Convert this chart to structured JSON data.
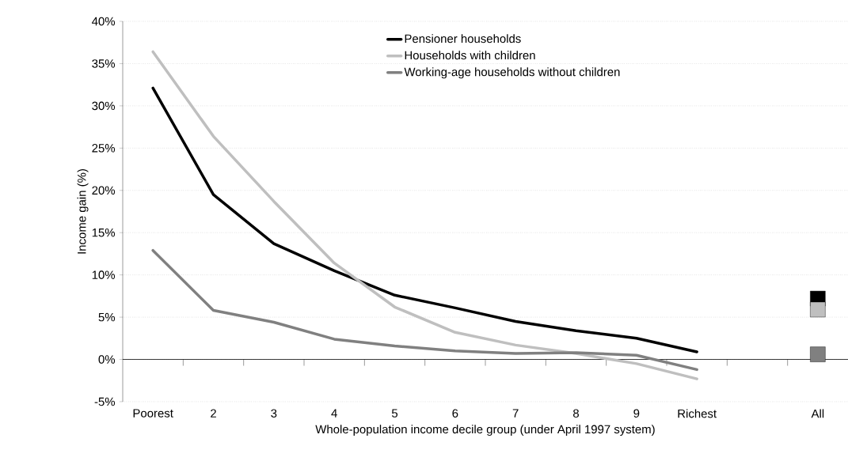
{
  "chart_data": {
    "type": "line",
    "xlabel": "Whole-population income decile group (under April 1997 system)",
    "ylabel": "Income gain (%)",
    "categories": [
      "Poorest",
      "2",
      "3",
      "4",
      "5",
      "6",
      "7",
      "8",
      "9",
      "Richest",
      null,
      "All"
    ],
    "series": [
      {
        "name": "Pensioner households",
        "color": "#000000",
        "values": [
          32.1,
          19.5,
          13.7,
          10.5,
          7.6,
          6.1,
          4.5,
          3.4,
          2.5,
          0.9,
          null,
          null
        ]
      },
      {
        "name": "Households with children",
        "color": "#bfbfbf",
        "values": [
          36.4,
          26.4,
          18.7,
          11.4,
          6.2,
          3.2,
          1.7,
          0.7,
          -0.5,
          -2.3,
          null,
          null
        ]
      },
      {
        "name": "Working-age households without children",
        "color": "#808080",
        "values": [
          12.9,
          5.8,
          4.4,
          2.4,
          1.6,
          1.0,
          0.7,
          0.8,
          0.5,
          -1.2,
          null,
          null
        ]
      },
      {
        "type": "scatter",
        "marker": "square",
        "color": "#000000",
        "x": [
          "All"
        ],
        "values": [
          7.2
        ]
      },
      {
        "type": "scatter",
        "marker": "square",
        "color": "#bfbfbf",
        "x": [
          "All"
        ],
        "values": [
          5.9
        ]
      },
      {
        "type": "scatter",
        "marker": "square",
        "color": "#808080",
        "x": [
          "All"
        ],
        "values": [
          0.6
        ]
      }
    ],
    "ylim": [
      -5,
      40
    ],
    "yticks": [
      {
        "value": -5,
        "label": "-5%"
      },
      {
        "value": 0,
        "label": "0%"
      },
      {
        "value": 5,
        "label": "5%"
      },
      {
        "value": 10,
        "label": "10%"
      },
      {
        "value": 15,
        "label": "15%"
      },
      {
        "value": 20,
        "label": "20%"
      },
      {
        "value": 25,
        "label": "25%"
      },
      {
        "value": 30,
        "label": "30%"
      },
      {
        "value": 35,
        "label": "35%"
      },
      {
        "value": 40,
        "label": "40%"
      }
    ],
    "grid": "y",
    "legend": "top",
    "marker": "none",
    "line_style": "solid"
  }
}
